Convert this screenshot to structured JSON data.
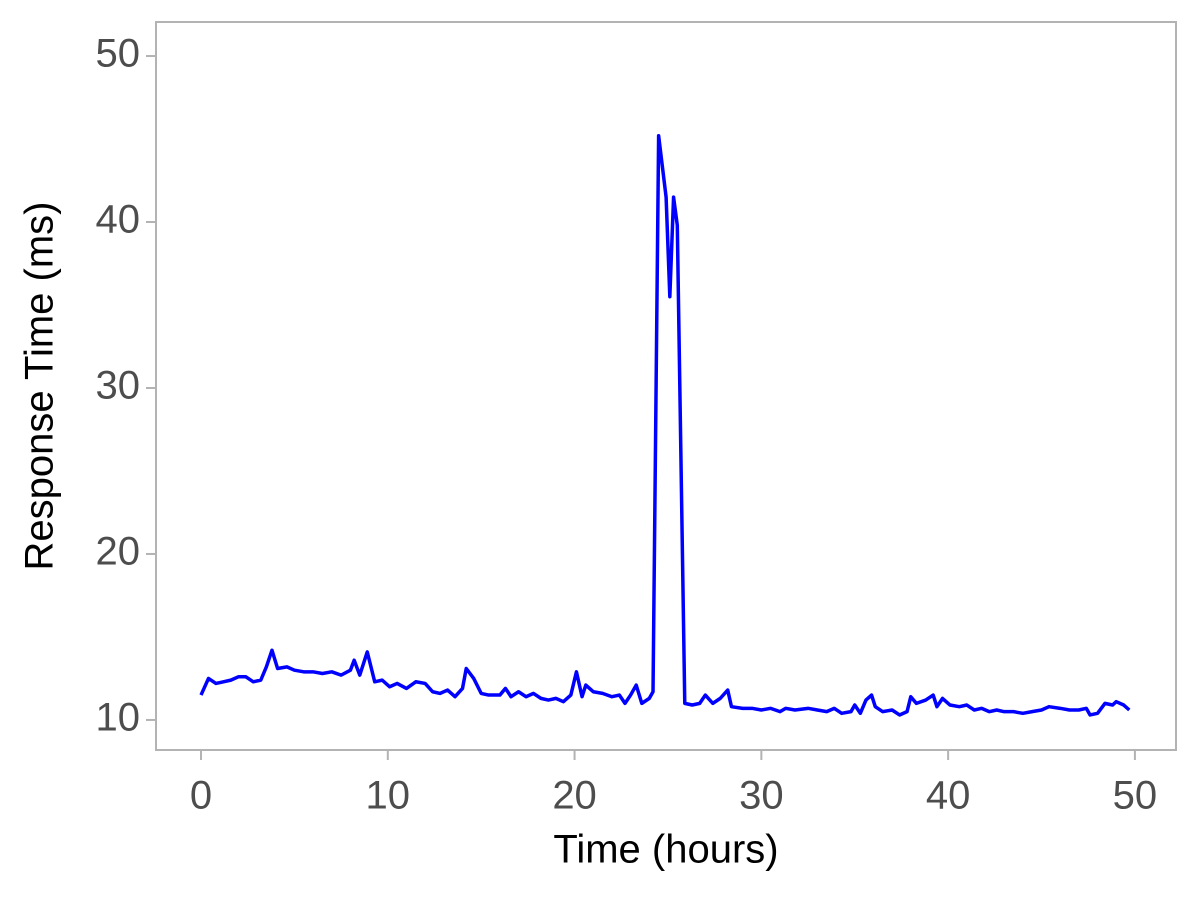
{
  "chart_data": {
    "type": "line",
    "x_label": "Time (hours)",
    "y_label": "Response Time (ms)",
    "x": [
      0,
      0.4,
      0.8,
      1.2,
      1.6,
      2.0,
      2.4,
      2.8,
      3.2,
      3.5,
      3.8,
      4.1,
      4.6,
      5.0,
      5.5,
      6.0,
      6.5,
      7.0,
      7.5,
      8.0,
      8.2,
      8.5,
      8.9,
      9.3,
      9.7,
      10.1,
      10.5,
      11.0,
      11.5,
      12.0,
      12.4,
      12.8,
      13.2,
      13.6,
      14.0,
      14.2,
      14.6,
      15.0,
      15.4,
      16.0,
      16.3,
      16.6,
      17.0,
      17.4,
      17.8,
      18.2,
      18.6,
      19.0,
      19.4,
      19.8,
      20.1,
      20.4,
      20.6,
      21.0,
      21.5,
      22.0,
      22.4,
      22.7,
      23.0,
      23.3,
      23.6,
      24.0,
      24.2,
      24.5,
      24.9,
      25.1,
      25.3,
      25.5,
      25.9,
      26.3,
      26.7,
      27.0,
      27.4,
      27.8,
      28.2,
      28.4,
      29.0,
      29.5,
      30.0,
      30.5,
      31.0,
      31.3,
      31.8,
      32.5,
      33.0,
      33.5,
      33.9,
      34.3,
      34.8,
      35.0,
      35.3,
      35.6,
      35.9,
      36.1,
      36.5,
      37.0,
      37.4,
      37.8,
      38.0,
      38.3,
      38.8,
      39.2,
      39.4,
      39.7,
      40.1,
      40.6,
      41.0,
      41.4,
      41.8,
      42.2,
      42.6,
      43.0,
      43.5,
      44.0,
      44.5,
      45.0,
      45.4,
      46.0,
      46.5,
      47.0,
      47.4,
      47.6,
      48.0,
      48.4,
      48.8,
      49.0,
      49.4,
      49.7
    ],
    "series": [
      {
        "name": "Response Time",
        "color": "#0000ff",
        "values": [
          11.5,
          12.5,
          12.2,
          12.3,
          12.4,
          12.6,
          12.6,
          12.3,
          12.4,
          13.2,
          14.2,
          13.1,
          13.2,
          13.0,
          12.9,
          12.9,
          12.8,
          12.9,
          12.7,
          13.0,
          13.6,
          12.7,
          14.1,
          12.3,
          12.4,
          12.0,
          12.2,
          11.9,
          12.3,
          12.2,
          11.7,
          11.6,
          11.8,
          11.4,
          11.9,
          13.1,
          12.5,
          11.6,
          11.5,
          11.5,
          11.9,
          11.4,
          11.7,
          11.4,
          11.6,
          11.3,
          11.2,
          11.3,
          11.1,
          11.5,
          12.9,
          11.4,
          12.1,
          11.7,
          11.6,
          11.4,
          11.5,
          11.0,
          11.5,
          12.1,
          11.0,
          11.3,
          11.7,
          45.2,
          41.5,
          35.5,
          41.5,
          39.8,
          11.0,
          10.9,
          11.0,
          11.5,
          11.0,
          11.3,
          11.8,
          10.8,
          10.7,
          10.7,
          10.6,
          10.7,
          10.5,
          10.7,
          10.6,
          10.7,
          10.6,
          10.5,
          10.7,
          10.4,
          10.5,
          10.9,
          10.4,
          11.2,
          11.5,
          10.8,
          10.5,
          10.6,
          10.3,
          10.5,
          11.4,
          11.0,
          11.2,
          11.5,
          10.8,
          11.3,
          10.9,
          10.8,
          10.9,
          10.6,
          10.7,
          10.5,
          10.6,
          10.5,
          10.5,
          10.4,
          10.5,
          10.6,
          10.8,
          10.7,
          10.6,
          10.6,
          10.7,
          10.3,
          10.4,
          11.0,
          10.9,
          11.1,
          10.9,
          10.6
        ]
      }
    ],
    "xlim": [
      -2.41,
      52.2
    ],
    "xticks": [
      0,
      10,
      20,
      30,
      40,
      50
    ],
    "ylim": [
      8.19,
      52.05
    ],
    "yticks": [
      10,
      20,
      30,
      40,
      50
    ],
    "grid": false
  }
}
